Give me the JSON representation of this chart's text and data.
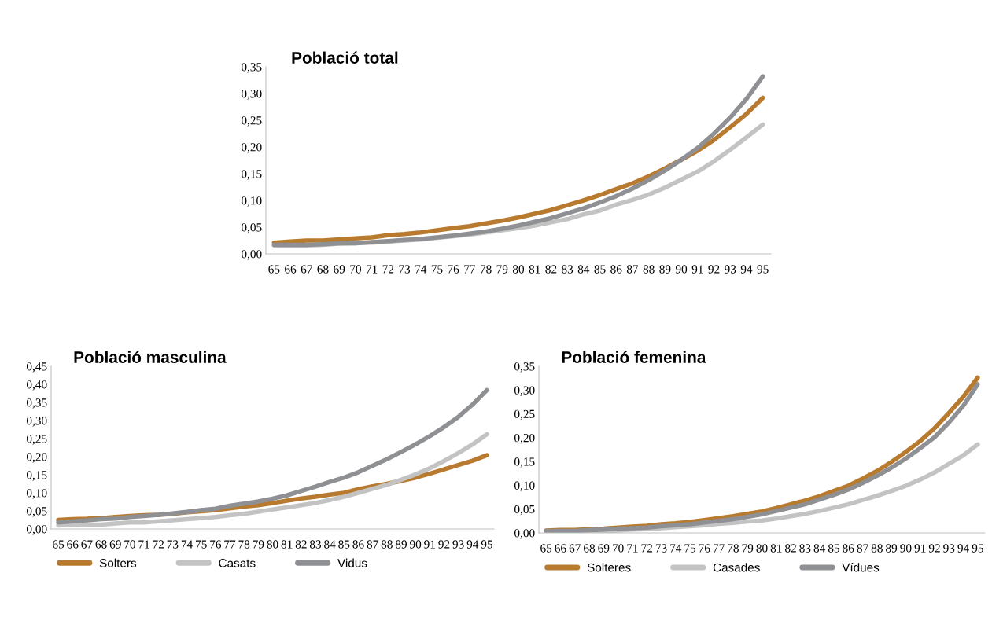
{
  "chart_data": [
    {
      "type": "line",
      "title": "Població total",
      "categories": [
        "65",
        "66",
        "67",
        "68",
        "69",
        "70",
        "71",
        "72",
        "73",
        "74",
        "75",
        "76",
        "77",
        "78",
        "79",
        "80",
        "81",
        "82",
        "83",
        "84",
        "85",
        "86",
        "87",
        "88",
        "89",
        "90",
        "91",
        "92",
        "93",
        "94",
        "95"
      ],
      "series": [
        {
          "color": "#b87a2f",
          "values": [
            0.021,
            0.023,
            0.025,
            0.025,
            0.027,
            0.029,
            0.031,
            0.035,
            0.037,
            0.04,
            0.044,
            0.048,
            0.052,
            0.057,
            0.062,
            0.068,
            0.075,
            0.082,
            0.091,
            0.1,
            0.11,
            0.121,
            0.132,
            0.145,
            0.16,
            0.176,
            0.193,
            0.213,
            0.237,
            0.262,
            0.292
          ]
        },
        {
          "color": "#c3c3c3",
          "values": [
            0.016,
            0.016,
            0.016,
            0.017,
            0.019,
            0.02,
            0.021,
            0.023,
            0.025,
            0.027,
            0.03,
            0.033,
            0.036,
            0.04,
            0.044,
            0.048,
            0.053,
            0.059,
            0.065,
            0.074,
            0.081,
            0.092,
            0.101,
            0.111,
            0.124,
            0.139,
            0.154,
            0.173,
            0.195,
            0.218,
            0.242
          ]
        },
        {
          "color": "#8e9093",
          "values": [
            0.017,
            0.017,
            0.017,
            0.018,
            0.02,
            0.02,
            0.022,
            0.024,
            0.026,
            0.028,
            0.031,
            0.034,
            0.038,
            0.042,
            0.047,
            0.053,
            0.06,
            0.067,
            0.076,
            0.085,
            0.096,
            0.108,
            0.122,
            0.138,
            0.156,
            0.176,
            0.198,
            0.225,
            0.255,
            0.29,
            0.332
          ]
        }
      ],
      "ylim": [
        0,
        0.35
      ],
      "yticks": [
        {
          "value": 0,
          "label": "0,00"
        },
        {
          "value": 0.05,
          "label": "0,05"
        },
        {
          "value": 0.1,
          "label": "0,10"
        },
        {
          "value": 0.15,
          "label": "0,15"
        },
        {
          "value": 0.2,
          "label": "0,20"
        },
        {
          "value": 0.25,
          "label": "0,25"
        },
        {
          "value": 0.3,
          "label": "0,30"
        },
        {
          "value": 0.35,
          "label": "0,35"
        }
      ],
      "grid": false,
      "legend": false,
      "marker": "none",
      "line_style": "solid"
    },
    {
      "type": "line",
      "title": "Població masculina",
      "categories": [
        "65",
        "66",
        "67",
        "68",
        "69",
        "70",
        "71",
        "72",
        "73",
        "74",
        "75",
        "76",
        "77",
        "78",
        "79",
        "80",
        "81",
        "82",
        "83",
        "84",
        "85",
        "86",
        "87",
        "88",
        "89",
        "90",
        "91",
        "92",
        "93",
        "94",
        "95"
      ],
      "series": [
        {
          "name": "Solters",
          "color": "#b87a2f",
          "values": [
            0.025,
            0.027,
            0.028,
            0.03,
            0.033,
            0.036,
            0.038,
            0.039,
            0.042,
            0.046,
            0.049,
            0.052,
            0.057,
            0.062,
            0.066,
            0.072,
            0.078,
            0.084,
            0.089,
            0.095,
            0.1,
            0.11,
            0.118,
            0.125,
            0.133,
            0.142,
            0.153,
            0.165,
            0.177,
            0.189,
            0.204
          ]
        },
        {
          "name": "Casats",
          "color": "#c3c3c3",
          "values": [
            0.01,
            0.012,
            0.012,
            0.012,
            0.015,
            0.018,
            0.018,
            0.021,
            0.024,
            0.027,
            0.03,
            0.033,
            0.038,
            0.042,
            0.048,
            0.054,
            0.06,
            0.066,
            0.072,
            0.08,
            0.089,
            0.1,
            0.111,
            0.122,
            0.136,
            0.151,
            0.168,
            0.188,
            0.21,
            0.234,
            0.262
          ]
        },
        {
          "name": "Vidus",
          "color": "#8e9093",
          "values": [
            0.018,
            0.021,
            0.024,
            0.027,
            0.029,
            0.033,
            0.036,
            0.039,
            0.043,
            0.047,
            0.052,
            0.056,
            0.064,
            0.07,
            0.076,
            0.084,
            0.093,
            0.105,
            0.117,
            0.13,
            0.142,
            0.157,
            0.175,
            0.193,
            0.213,
            0.234,
            0.257,
            0.282,
            0.31,
            0.344,
            0.384
          ]
        }
      ],
      "ylim": [
        0,
        0.45
      ],
      "yticks": [
        {
          "value": 0,
          "label": "0,00"
        },
        {
          "value": 0.05,
          "label": "0,05"
        },
        {
          "value": 0.1,
          "label": "0,10"
        },
        {
          "value": 0.15,
          "label": "0,15"
        },
        {
          "value": 0.2,
          "label": "0,20"
        },
        {
          "value": 0.25,
          "label": "0,25"
        },
        {
          "value": 0.3,
          "label": "0,30"
        },
        {
          "value": 0.35,
          "label": "0,35"
        },
        {
          "value": 0.4,
          "label": "0,40"
        },
        {
          "value": 0.45,
          "label": "0,45"
        }
      ],
      "grid": false,
      "legend": "bottom",
      "marker": "none",
      "line_style": "solid"
    },
    {
      "type": "line",
      "title": "Població femenina",
      "categories": [
        "65",
        "66",
        "67",
        "68",
        "69",
        "70",
        "71",
        "72",
        "73",
        "74",
        "75",
        "76",
        "77",
        "78",
        "79",
        "80",
        "81",
        "82",
        "83",
        "84",
        "85",
        "86",
        "87",
        "88",
        "89",
        "90",
        "91",
        "92",
        "93",
        "94",
        "95"
      ],
      "series": [
        {
          "name": "Solteres",
          "color": "#b87a2f",
          "values": [
            0.005,
            0.006,
            0.006,
            0.008,
            0.009,
            0.011,
            0.013,
            0.015,
            0.018,
            0.02,
            0.023,
            0.027,
            0.031,
            0.035,
            0.04,
            0.045,
            0.052,
            0.06,
            0.068,
            0.077,
            0.088,
            0.099,
            0.114,
            0.13,
            0.149,
            0.17,
            0.193,
            0.22,
            0.252,
            0.286,
            0.326
          ]
        },
        {
          "name": "Casades",
          "color": "#c3c3c3",
          "values": [
            0.002,
            0.002,
            0.002,
            0.003,
            0.004,
            0.005,
            0.007,
            0.008,
            0.01,
            0.012,
            0.014,
            0.016,
            0.019,
            0.021,
            0.024,
            0.026,
            0.03,
            0.035,
            0.04,
            0.046,
            0.053,
            0.06,
            0.069,
            0.078,
            0.088,
            0.099,
            0.112,
            0.127,
            0.145,
            0.163,
            0.186
          ]
        },
        {
          "name": "Vídues",
          "color": "#8e9093",
          "values": [
            0.004,
            0.004,
            0.004,
            0.006,
            0.007,
            0.009,
            0.01,
            0.011,
            0.014,
            0.016,
            0.018,
            0.022,
            0.025,
            0.029,
            0.034,
            0.039,
            0.046,
            0.053,
            0.06,
            0.07,
            0.08,
            0.091,
            0.105,
            0.12,
            0.137,
            0.156,
            0.178,
            0.201,
            0.232,
            0.267,
            0.312
          ]
        }
      ],
      "ylim": [
        0,
        0.35
      ],
      "yticks": [
        {
          "value": 0,
          "label": "0,00"
        },
        {
          "value": 0.05,
          "label": "0,05"
        },
        {
          "value": 0.1,
          "label": "0,10"
        },
        {
          "value": 0.15,
          "label": "0,15"
        },
        {
          "value": 0.2,
          "label": "0,20"
        },
        {
          "value": 0.25,
          "label": "0,25"
        },
        {
          "value": 0.3,
          "label": "0,30"
        },
        {
          "value": 0.35,
          "label": "0,35"
        }
      ],
      "grid": false,
      "legend": "bottom",
      "marker": "none",
      "line_style": "solid"
    }
  ]
}
